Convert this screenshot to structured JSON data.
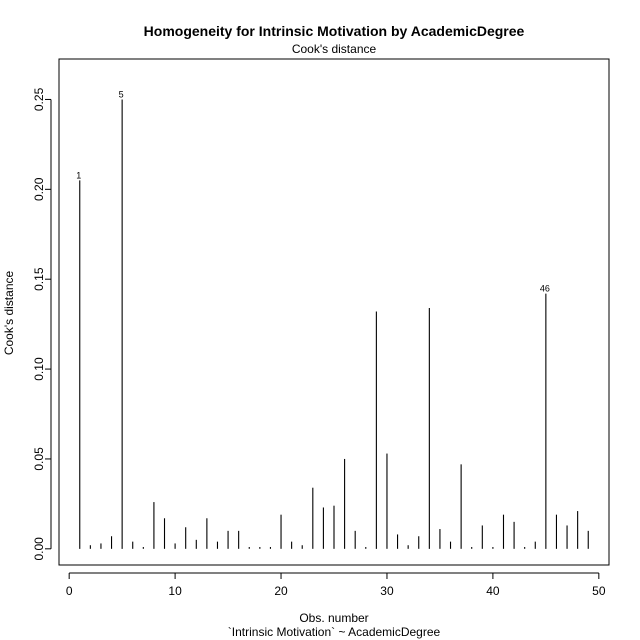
{
  "chart_data": {
    "type": "bar",
    "title": "Homogeneity for Intrinsic Motivation by AcademicDegree",
    "subtitle": "Cook's distance",
    "xlabel": "Obs. number",
    "xlabel2": "`Intrinsic Motivation` ~ AcademicDegree",
    "ylabel": "Cook's distance",
    "xlim": [
      -0.96,
      50.96
    ],
    "ylim": [
      -0.009,
      0.2725
    ],
    "x_ticks": [
      0,
      10,
      20,
      30,
      40,
      50
    ],
    "y_ticks": [
      0.0,
      0.05,
      0.1,
      0.15,
      0.2,
      0.25
    ],
    "y_tick_labels": [
      "0.00",
      "0.05",
      "0.10",
      "0.15",
      "0.20",
      "0.25"
    ],
    "x": [
      1,
      2,
      3,
      4,
      5,
      6,
      7,
      8,
      9,
      10,
      11,
      12,
      13,
      14,
      15,
      16,
      17,
      18,
      19,
      20,
      21,
      22,
      23,
      24,
      25,
      26,
      27,
      28,
      29,
      30,
      31,
      32,
      33,
      34,
      35,
      36,
      37,
      38,
      39,
      40,
      41,
      42,
      43,
      44,
      45,
      46,
      47,
      48,
      49
    ],
    "values": [
      0.205,
      0.002,
      0.003,
      0.007,
      0.25,
      0.004,
      0.001,
      0.026,
      0.017,
      0.003,
      0.012,
      0.005,
      0.017,
      0.004,
      0.01,
      0.01,
      0.001,
      0.001,
      0.001,
      0.019,
      0.004,
      0.002,
      0.034,
      0.023,
      0.024,
      0.05,
      0.01,
      0.001,
      0.132,
      0.053,
      0.008,
      0.002,
      0.007,
      0.134,
      0.011,
      0.004,
      0.047,
      0.001,
      0.013,
      0.001,
      0.019,
      0.015,
      0.001,
      0.004,
      0.142,
      0.019,
      0.013,
      0.021,
      0.01
    ],
    "labeled_points": [
      {
        "x": 1,
        "label": "1"
      },
      {
        "x": 5,
        "label": "5"
      },
      {
        "x": 45,
        "label": "46"
      }
    ],
    "grid": false,
    "legend": "none"
  }
}
